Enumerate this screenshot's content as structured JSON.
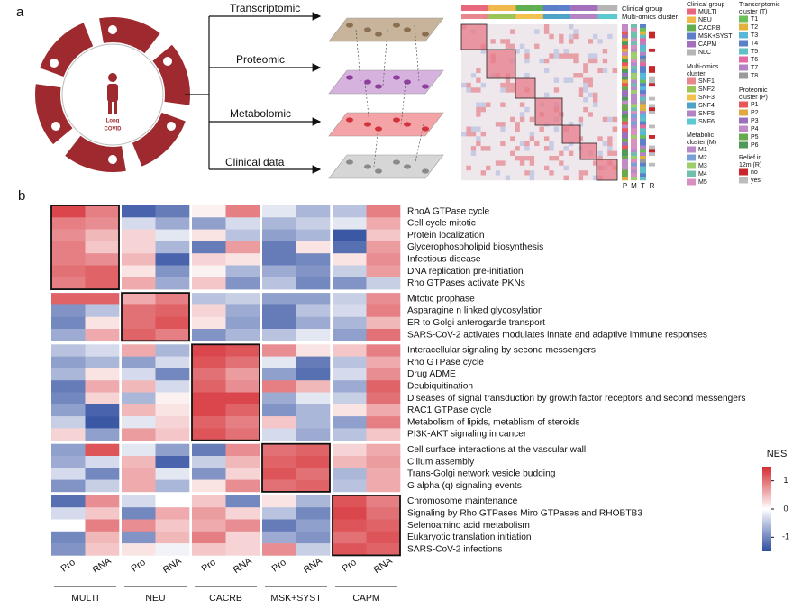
{
  "panel_a": {
    "label": "a",
    "center_text": [
      "Long",
      "COVID"
    ],
    "layers": [
      "Transcriptomic",
      "Proteomic",
      "Metabolomic",
      "Clinical data"
    ],
    "cluster_heatmap": {
      "top_labels": [
        "Clinical group",
        "Multi-omics cluster"
      ],
      "bottom_labels": [
        "P",
        "M",
        "T",
        "R"
      ]
    },
    "legends": [
      {
        "title": [
          "Clinical group"
        ],
        "items": [
          {
            "label": "MULTI",
            "color": "#e9677c"
          },
          {
            "label": "NEU",
            "color": "#f0b94a"
          },
          {
            "label": "CACRB",
            "color": "#5fae4f"
          },
          {
            "label": "MSK+SYST",
            "color": "#5b7fc8"
          },
          {
            "label": "CAPM",
            "color": "#a36fbd"
          },
          {
            "label": "NLC",
            "color": "#b5b5b5"
          }
        ]
      },
      {
        "title": [
          "Multi-omics",
          "cluster"
        ],
        "items": [
          {
            "label": "SNF1",
            "color": "#e8868d"
          },
          {
            "label": "SNF2",
            "color": "#9cc356"
          },
          {
            "label": "SNF3",
            "color": "#f2c14e"
          },
          {
            "label": "SNF4",
            "color": "#4fa3c7"
          },
          {
            "label": "SNF5",
            "color": "#b483c2"
          },
          {
            "label": "SNF6",
            "color": "#5cc8d0"
          }
        ]
      },
      {
        "title": [
          "Metabolic",
          "cluster (M)"
        ],
        "items": [
          {
            "label": "M1",
            "color": "#b88ac8"
          },
          {
            "label": "M2",
            "color": "#7aa0d8"
          },
          {
            "label": "M3",
            "color": "#9ccf6b"
          },
          {
            "label": "M4",
            "color": "#6fbfae"
          },
          {
            "label": "M5",
            "color": "#d990c0"
          }
        ]
      },
      {
        "title": [
          "Transcriptomic",
          "cluster (T)"
        ],
        "items": [
          {
            "label": "T1",
            "color": "#6bbf59"
          },
          {
            "label": "T2",
            "color": "#e3b23c"
          },
          {
            "label": "T3",
            "color": "#59b7d9"
          },
          {
            "label": "T4",
            "color": "#5b7fc8"
          },
          {
            "label": "T5",
            "color": "#62c0c4"
          },
          {
            "label": "T6",
            "color": "#e36aa0"
          },
          {
            "label": "T7",
            "color": "#b383c4"
          },
          {
            "label": "T8",
            "color": "#9a9a9a"
          }
        ]
      },
      {
        "title": [
          "Proteomic",
          "cluster (P)"
        ],
        "items": [
          {
            "label": "P1",
            "color": "#e8585a"
          },
          {
            "label": "P2",
            "color": "#e0a840"
          },
          {
            "label": "P3",
            "color": "#9c6fbd"
          },
          {
            "label": "P4",
            "color": "#c28ac8"
          },
          {
            "label": "P5",
            "color": "#6aaa4f"
          },
          {
            "label": "P6",
            "color": "#4f9a58"
          }
        ]
      },
      {
        "title": [
          "Relief in",
          "12m (R)"
        ],
        "items": [
          {
            "label": "no",
            "color": "#c8252d"
          },
          {
            "label": "yes",
            "color": "#bdbdbd"
          }
        ]
      }
    ]
  },
  "panel_b": {
    "label": "b"
  },
  "chart_data": {
    "type": "heatmap",
    "groups": [
      {
        "name": "MULTI",
        "columns": [
          "Pro",
          "RNA"
        ]
      },
      {
        "name": "NEU",
        "columns": [
          "Pro",
          "RNA"
        ]
      },
      {
        "name": "CACRB",
        "columns": [
          "Pro",
          "RNA"
        ]
      },
      {
        "name": "MSK+SYST",
        "columns": [
          "Pro",
          "RNA"
        ]
      },
      {
        "name": "CAPM",
        "columns": [
          "Pro",
          "RNA"
        ]
      }
    ],
    "row_blocks": [
      {
        "labels": [
          "RhoA GTPase cycle",
          "Cell cycle mitotic",
          "Protein localization",
          "Glycerophospholipid biosynthesis",
          "Infectious disease",
          "DNA replication pre-initiation",
          "Rho GTPases activate PKNs"
        ],
        "values": [
          [
            1.3,
            0.9,
            -1.3,
            -1.1,
            0.1,
            0.9,
            -0.2,
            -0.6,
            -0.5,
            0.9
          ],
          [
            0.9,
            0.8,
            -0.3,
            -0.7,
            -0.8,
            -0.3,
            -0.6,
            -0.4,
            -0.2,
            0.6
          ],
          [
            0.8,
            0.5,
            0.3,
            -0.2,
            0.2,
            -0.5,
            -0.8,
            -0.6,
            -1.4,
            0.4
          ],
          [
            0.9,
            0.4,
            0.3,
            -0.6,
            -1.1,
            0.7,
            -1.1,
            0.2,
            -1.2,
            0.7
          ],
          [
            0.9,
            0.8,
            0.5,
            -1.3,
            0.3,
            0.2,
            -1.1,
            -1.0,
            0.2,
            0.8
          ],
          [
            1.0,
            1.1,
            0.2,
            -0.9,
            0.1,
            -0.6,
            -0.7,
            -0.9,
            -0.4,
            0.7
          ],
          [
            0.9,
            1.1,
            0.6,
            -0.7,
            0.4,
            -0.9,
            -0.5,
            -1.0,
            -0.9,
            -0.4
          ]
        ]
      },
      {
        "labels": [
          "Mitotic prophase",
          "Asparagine n linked glycosylation",
          "ER to Golgi anterogarde transport",
          "SARS-CoV-2 activates modulates innate and adaptive immune responses"
        ],
        "values": [
          [
            1.1,
            1.1,
            0.6,
            0.9,
            -0.5,
            -0.4,
            -0.8,
            -0.8,
            -0.4,
            0.8
          ],
          [
            -0.9,
            -0.5,
            1.0,
            1.1,
            0.3,
            -0.7,
            -1.1,
            -0.5,
            -0.3,
            0.9
          ],
          [
            -1.0,
            0.2,
            1.0,
            1.2,
            0.2,
            -0.8,
            -1.1,
            -0.7,
            -0.6,
            0.5
          ],
          [
            -0.7,
            0.6,
            1.1,
            0.9,
            -0.9,
            -0.6,
            -0.5,
            -0.2,
            -0.8,
            1.0
          ]
        ]
      },
      {
        "labels": [
          "Interacellular signaling by second messengers",
          "Rho GTPase cycle",
          "Drug ADME",
          "Deubiquitination",
          "Diseases of signal transduction by growth factor  receptors and second messengers",
          "RAC1 GTPase cycle",
          "Metabolism of lipids, metablism of steroids",
          "PI3K-AKT signaling in cancer"
        ],
        "values": [
          [
            -0.5,
            -0.3,
            0.6,
            -0.6,
            1.3,
            1.2,
            0.8,
            0.2,
            0.4,
            0.9
          ],
          [
            -0.8,
            -0.6,
            -0.8,
            -0.3,
            1.2,
            1.0,
            -0.2,
            -1.1,
            -0.5,
            0.6
          ],
          [
            -0.6,
            0.2,
            -0.3,
            -1.0,
            1.0,
            0.7,
            -0.8,
            -1.2,
            -0.3,
            0.8
          ],
          [
            -1.1,
            0.6,
            0.5,
            -0.3,
            1.1,
            0.8,
            0.9,
            0.5,
            -0.7,
            1.1
          ],
          [
            -1.0,
            0.3,
            -0.6,
            0.1,
            1.3,
            1.3,
            -0.7,
            -0.2,
            -0.4,
            1.0
          ],
          [
            -0.8,
            -1.3,
            0.5,
            0.2,
            1.3,
            1.1,
            -0.9,
            -0.6,
            0.2,
            0.6
          ],
          [
            -0.4,
            -1.4,
            -0.2,
            0.3,
            1.1,
            0.9,
            0.4,
            -0.6,
            -0.8,
            0.9
          ],
          [
            0.3,
            -0.8,
            0.7,
            0.4,
            1.2,
            1.0,
            -0.3,
            -0.7,
            -0.5,
            0.4
          ]
        ]
      },
      {
        "labels": [
          "Cell surface interactions at the vascular wall",
          "Cilium assembly",
          "Trans-Golgi network vesicle budding",
          "G alpha (q) signaling events"
        ],
        "values": [
          [
            -0.8,
            1.2,
            -0.2,
            -0.8,
            -1.1,
            0.8,
            1.0,
            1.1,
            0.3,
            0.6
          ],
          [
            -0.7,
            -0.3,
            0.5,
            -1.3,
            -0.4,
            0.5,
            1.1,
            1.2,
            0.5,
            0.7
          ],
          [
            -0.3,
            -1.0,
            0.6,
            -0.2,
            -0.9,
            0.3,
            1.2,
            1.0,
            -0.6,
            0.6
          ],
          [
            -0.9,
            -0.4,
            0.6,
            -0.6,
            0.2,
            0.8,
            1.0,
            1.1,
            -0.5,
            0.6
          ]
        ]
      },
      {
        "labels": [
          "Chromosome maintenance",
          "Signaling by Rho GTPases Miro GTPases and RHOBTB3",
          "Selenoamino acid metabolism",
          "Eukaryotic translation initiation",
          "SARS-CoV-2 infections"
        ],
        "values": [
          [
            -1.2,
            0.8,
            -0.3,
            0.0,
            0.4,
            -1.0,
            0.2,
            -0.6,
            1.2,
            0.9
          ],
          [
            -0.3,
            0.4,
            -1.0,
            0.6,
            0.7,
            0.3,
            -0.5,
            -1.0,
            1.3,
            1.0
          ],
          [
            0.0,
            0.9,
            0.8,
            0.4,
            0.6,
            0.8,
            -1.1,
            -0.8,
            1.2,
            1.1
          ],
          [
            -1.0,
            0.5,
            -0.9,
            0.5,
            0.9,
            0.3,
            -0.7,
            -0.9,
            1.0,
            1.2
          ],
          [
            -0.9,
            0.4,
            0.2,
            -0.1,
            0.4,
            0.3,
            0.8,
            -0.4,
            1.2,
            1.1
          ]
        ]
      }
    ],
    "clim": [
      -1.5,
      1.5
    ],
    "cticks": [
      1,
      0,
      -1
    ],
    "colorbar_title": "NES",
    "colormap": [
      "#2d4c9f",
      "#ffffff",
      "#d42a30"
    ]
  }
}
